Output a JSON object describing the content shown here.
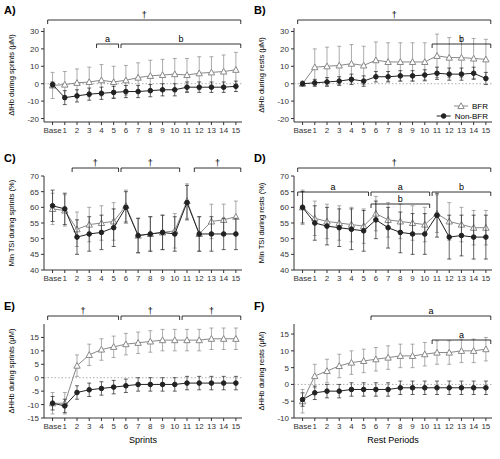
{
  "chart_data": [
    {
      "type": "line",
      "title": "A)",
      "ylabel": "ΔtHb during sprints (μM)",
      "categories": [
        "Base",
        "1",
        "2",
        "3",
        "4",
        "5",
        "6",
        "7",
        "8",
        "9",
        "10",
        "11",
        "12",
        "13",
        "14",
        "15"
      ],
      "series": [
        {
          "color": "#888888",
          "marker": "open-triangle",
          "values": [
            -1.0,
            -0.5,
            0.5,
            1.0,
            2.0,
            1.0,
            2.0,
            3.5,
            4.5,
            5.0,
            5.5,
            5.0,
            6.0,
            6.5,
            7.0,
            8.0
          ],
          "errors": [
            7.5,
            7.5,
            8.0,
            8.5,
            9.0,
            9.0,
            8.5,
            8.5,
            9.0,
            9.0,
            9.0,
            9.5,
            9.5,
            9.0,
            9.5,
            10.0
          ]
        },
        {
          "color": "#222222",
          "marker": "circle",
          "values": [
            -0.5,
            -8.0,
            -7.0,
            -6.0,
            -5.5,
            -5.0,
            -4.5,
            -4.5,
            -4.0,
            -3.5,
            -3.5,
            -2.0,
            -2.0,
            -2.0,
            -2.0,
            -1.5
          ],
          "errors": [
            1.5,
            4.0,
            3.5,
            3.5,
            3.5,
            3.5,
            3.5,
            3.5,
            3.5,
            3.5,
            3.5,
            3.0,
            3.0,
            3.0,
            3.0,
            3.0
          ]
        }
      ],
      "hline": 0,
      "ylim": [
        -22,
        32
      ],
      "yticks": [
        -20,
        -10,
        0,
        10,
        20,
        30
      ],
      "annotations": [
        {
          "text": "†",
          "from": "Base",
          "to": "15"
        },
        {
          "text": "a",
          "from": "4",
          "to": "5"
        },
        {
          "text": "b",
          "from": "6",
          "to": "15"
        }
      ]
    },
    {
      "type": "line",
      "title": "B)",
      "ylabel": "ΔtHb during rests (μM)",
      "categories": [
        "Base",
        "1",
        "2",
        "3",
        "4",
        "5",
        "6",
        "7",
        "8",
        "9",
        "10",
        "11",
        "12",
        "13",
        "14",
        "15"
      ],
      "series": [
        {
          "name": "BFR",
          "color": "#888888",
          "marker": "open-triangle",
          "values": [
            0.0,
            9.5,
            10.0,
            10.5,
            11.5,
            10.5,
            13.5,
            12.5,
            12.5,
            12.5,
            12.5,
            16.0,
            15.0,
            15.0,
            14.5,
            14.0
          ],
          "errors": [
            1.5,
            10.5,
            11.0,
            11.0,
            11.0,
            11.0,
            10.5,
            11.0,
            11.0,
            11.0,
            11.0,
            12.5,
            11.5,
            11.5,
            11.5,
            11.5
          ]
        },
        {
          "name": "Non-BFR",
          "color": "#222222",
          "marker": "circle",
          "values": [
            0.0,
            0.5,
            1.0,
            1.5,
            2.5,
            1.5,
            4.0,
            4.0,
            4.5,
            4.5,
            5.0,
            6.0,
            5.5,
            5.5,
            6.0,
            3.0
          ],
          "errors": [
            1.0,
            2.0,
            2.5,
            2.5,
            3.0,
            3.0,
            3.0,
            3.0,
            3.0,
            3.0,
            3.0,
            3.5,
            3.5,
            3.5,
            3.5,
            3.5
          ]
        }
      ],
      "hline": 0,
      "ylim": [
        -22,
        32
      ],
      "yticks": [
        -20,
        -10,
        0,
        10,
        20,
        30
      ],
      "legend": "lower right",
      "annotations": [
        {
          "text": "†",
          "from": "Base",
          "to": "15"
        },
        {
          "text": "b",
          "from": "11",
          "to": "15"
        }
      ]
    },
    {
      "type": "line",
      "title": "C)",
      "ylabel": "Min TSI during sprints (%)",
      "categories": [
        "Base",
        "1",
        "2",
        "3",
        "4",
        "5",
        "6",
        "7",
        "8",
        "9",
        "10",
        "11",
        "12",
        "13",
        "14",
        "15"
      ],
      "series": [
        {
          "color": "#888888",
          "marker": "open-triangle",
          "values": [
            59.5,
            59.0,
            53.0,
            54.5,
            55.0,
            55.5,
            60.5,
            51.0,
            51.5,
            52.0,
            52.5,
            62.0,
            51.5,
            55.5,
            56.0,
            57.0
          ],
          "errors": [
            5.0,
            5.0,
            5.5,
            5.5,
            5.5,
            6.0,
            5.0,
            5.5,
            5.5,
            5.5,
            5.5,
            5.5,
            5.5,
            5.5,
            5.0,
            5.0
          ]
        },
        {
          "color": "#222222",
          "marker": "circle",
          "values": [
            60.5,
            59.5,
            50.5,
            51.5,
            52.0,
            53.5,
            60.0,
            51.0,
            51.5,
            52.0,
            51.5,
            61.5,
            51.5,
            51.5,
            51.5,
            51.5
          ],
          "errors": [
            5.0,
            5.0,
            5.5,
            5.5,
            5.5,
            6.0,
            5.0,
            5.5,
            5.5,
            5.5,
            5.5,
            5.5,
            5.5,
            5.5,
            5.0,
            5.0
          ]
        }
      ],
      "ylim": [
        40,
        70
      ],
      "yticks": [
        40,
        45,
        50,
        55,
        60,
        65,
        70
      ],
      "annotations": [
        {
          "text": "†",
          "from": "2",
          "to": "5"
        },
        {
          "text": "†",
          "from": "6",
          "to": "10"
        },
        {
          "text": "†",
          "from": "12",
          "to": "15"
        }
      ]
    },
    {
      "type": "line",
      "title": "D)",
      "ylabel": "Min TSI during rests (%)",
      "categories": [
        "Base",
        "1",
        "2",
        "3",
        "4",
        "5",
        "6",
        "7",
        "8",
        "9",
        "10",
        "11",
        "12",
        "13",
        "14",
        "15"
      ],
      "series": [
        {
          "color": "#888888",
          "marker": "open-triangle",
          "values": [
            60.0,
            56.5,
            55.5,
            55.0,
            54.5,
            54.0,
            58.0,
            56.0,
            55.5,
            55.0,
            54.5,
            58.0,
            55.5,
            54.5,
            53.5,
            53.5
          ],
          "errors": [
            5.5,
            5.5,
            5.5,
            5.5,
            5.5,
            5.5,
            5.5,
            5.5,
            5.5,
            5.5,
            5.5,
            6.0,
            6.0,
            5.5,
            5.5,
            5.5
          ]
        },
        {
          "color": "#222222",
          "marker": "circle",
          "values": [
            60.0,
            55.0,
            54.0,
            53.5,
            53.0,
            52.5,
            56.0,
            53.5,
            52.0,
            51.5,
            51.5,
            57.5,
            50.5,
            51.0,
            50.5,
            50.5
          ],
          "errors": [
            5.0,
            5.5,
            6.0,
            6.0,
            6.5,
            6.5,
            6.0,
            6.5,
            6.5,
            6.5,
            6.5,
            7.0,
            7.0,
            6.5,
            7.0,
            7.0
          ]
        }
      ],
      "ylim": [
        40,
        70
      ],
      "yticks": [
        40,
        45,
        50,
        55,
        60,
        65,
        70
      ],
      "annotations": [
        {
          "text": "†",
          "from": "Base",
          "to": "15"
        },
        {
          "text": "a",
          "from": "Base",
          "to": "5"
        },
        {
          "text": "a",
          "from": "6",
          "to": "10"
        },
        {
          "text": "b",
          "from": "6",
          "to": "10"
        },
        {
          "text": "b",
          "from": "11",
          "to": "15"
        }
      ]
    },
    {
      "type": "line",
      "title": "E)",
      "ylabel": "ΔHHb during sprints (μM)",
      "xlabel": "Sprints",
      "categories": [
        "Base",
        "1",
        "2",
        "3",
        "4",
        "5",
        "6",
        "7",
        "8",
        "9",
        "10",
        "11",
        "12",
        "13",
        "14",
        "15"
      ],
      "series": [
        {
          "color": "#888888",
          "marker": "open-triangle",
          "values": [
            -9.5,
            -9.5,
            4.5,
            8.5,
            10.5,
            11.5,
            12.5,
            13.0,
            13.5,
            14.0,
            14.0,
            14.0,
            14.0,
            14.5,
            14.5,
            14.5
          ],
          "errors": [
            4.0,
            4.0,
            4.0,
            4.0,
            4.0,
            4.0,
            4.0,
            4.0,
            4.0,
            4.0,
            4.0,
            4.0,
            4.0,
            4.0,
            4.0,
            4.0
          ]
        },
        {
          "color": "#222222",
          "marker": "circle",
          "values": [
            -9.5,
            -10.5,
            -5.5,
            -4.5,
            -4.0,
            -3.5,
            -3.0,
            -2.5,
            -2.5,
            -2.5,
            -2.5,
            -2.0,
            -2.0,
            -2.0,
            -2.0,
            -2.0
          ],
          "errors": [
            2.5,
            2.5,
            2.5,
            2.5,
            2.5,
            2.5,
            2.5,
            2.5,
            2.5,
            2.5,
            2.5,
            2.5,
            2.5,
            2.5,
            2.5,
            2.5
          ]
        }
      ],
      "hline": 0,
      "ylim": [
        -15,
        20
      ],
      "yticks": [
        -15,
        -10,
        -5,
        0,
        5,
        10,
        15
      ],
      "annotations": [
        {
          "text": "†",
          "from": "Base",
          "to": "5"
        },
        {
          "text": "†",
          "from": "6",
          "to": "10"
        },
        {
          "text": "†",
          "from": "11",
          "to": "15"
        }
      ]
    },
    {
      "type": "line",
      "title": "F)",
      "ylabel": "ΔHHb during rests (μM)",
      "xlabel": "Rest Periods",
      "categories": [
        "Base",
        "1",
        "2",
        "3",
        "4",
        "5",
        "6",
        "7",
        "8",
        "9",
        "10",
        "11",
        "12",
        "13",
        "14",
        "15"
      ],
      "series": [
        {
          "color": "#888888",
          "marker": "open-triangle",
          "values": [
            -5.0,
            2.5,
            4.0,
            5.5,
            6.5,
            7.0,
            7.5,
            8.0,
            8.5,
            8.5,
            9.0,
            9.5,
            9.5,
            10.0,
            10.0,
            10.5
          ],
          "errors": [
            3.5,
            3.5,
            3.5,
            3.5,
            3.5,
            3.5,
            3.5,
            3.5,
            3.5,
            3.5,
            3.5,
            3.5,
            3.5,
            3.5,
            3.5,
            3.5
          ]
        },
        {
          "color": "#222222",
          "marker": "circle",
          "values": [
            -4.5,
            -2.5,
            -2.0,
            -2.0,
            -1.5,
            -1.5,
            -1.5,
            -1.5,
            -1.0,
            -1.0,
            -1.0,
            -1.0,
            -1.0,
            -1.0,
            -1.0,
            -1.0
          ],
          "errors": [
            2.0,
            2.0,
            2.0,
            2.0,
            2.0,
            2.0,
            2.0,
            2.0,
            2.0,
            2.0,
            2.0,
            2.0,
            2.0,
            2.0,
            2.0,
            2.0
          ]
        }
      ],
      "hline": 0,
      "ylim": [
        -10,
        18
      ],
      "yticks": [
        -10,
        -5,
        0,
        5,
        10,
        15
      ],
      "annotations": [
        {
          "text": "a",
          "from": "6",
          "to": "15"
        },
        {
          "text": "a",
          "from": "11",
          "to": "15"
        }
      ]
    }
  ]
}
